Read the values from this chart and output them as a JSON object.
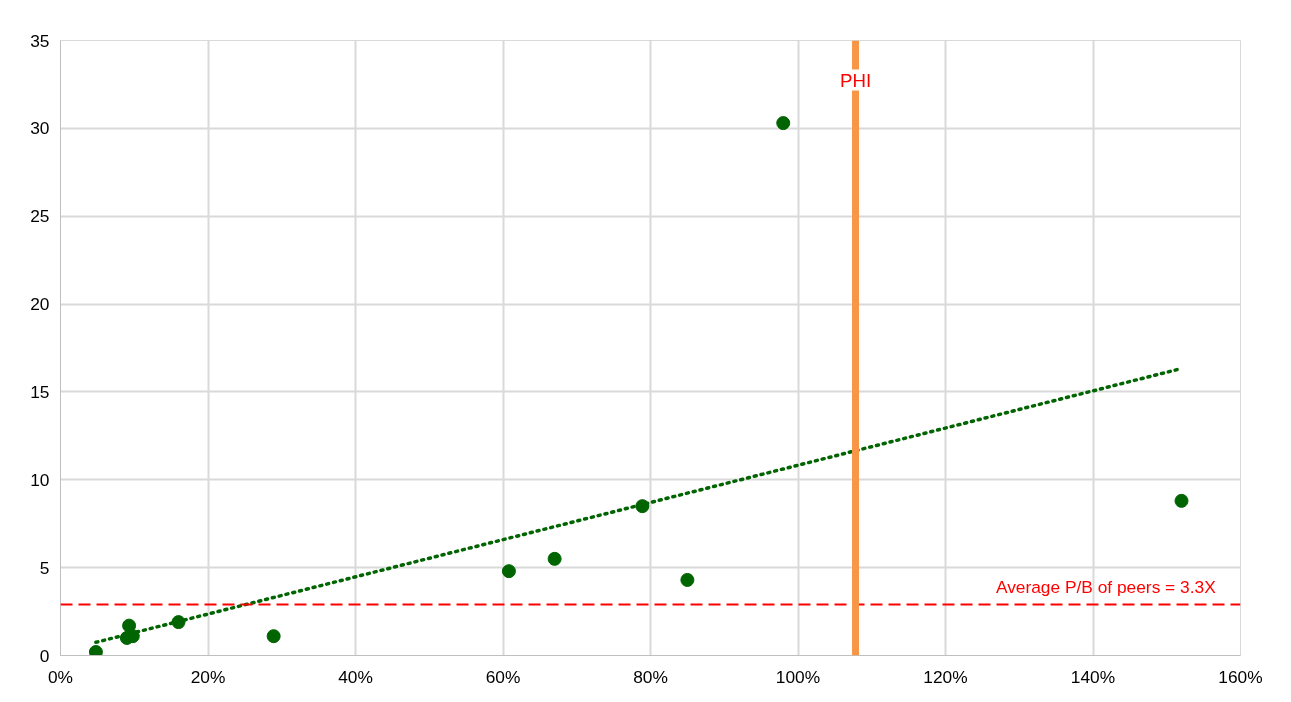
{
  "chart_data": {
    "type": "scatter",
    "series": [
      {
        "color": "#006400",
        "marker": "circle",
        "x": [
          4.8,
          9.3,
          9.0,
          9.8,
          16,
          28.9,
          60.8,
          67,
          78.9,
          85,
          98,
          152
        ],
        "values": [
          0.2,
          1.7,
          1.0,
          1.1,
          1.9,
          1.1,
          4.8,
          5.5,
          8.5,
          4.3,
          30.3,
          8.8
        ]
      },
      {
        "type": "line",
        "color": "#006400",
        "marker": "none",
        "line_style": "dotted",
        "x": [
          4.8,
          151.7
        ],
        "values": [
          0.75,
          16.3
        ]
      }
    ],
    "xlim": [
      0,
      160
    ],
    "ylim": [
      0,
      35
    ],
    "xticks": [
      {
        "value": 0,
        "label": "0%"
      },
      {
        "value": 20,
        "label": "20%"
      },
      {
        "value": 40,
        "label": "40%"
      },
      {
        "value": 60,
        "label": "60%"
      },
      {
        "value": 80,
        "label": "80%"
      },
      {
        "value": 100,
        "label": "100%"
      },
      {
        "value": 120,
        "label": "120%"
      },
      {
        "value": 140,
        "label": "140%"
      },
      {
        "value": 160,
        "label": "160%"
      }
    ],
    "yticks": [
      0,
      5,
      10,
      15,
      20,
      25,
      30,
      35
    ],
    "grid": true,
    "annotations": [
      "Average P/B of peers  = 3.3X"
    ],
    "ref_lines": [
      {
        "axis": "y",
        "value": 2.9,
        "color": "#ff0000",
        "line_style": "dashed"
      },
      {
        "axis": "x",
        "value": 107.8,
        "label": "PHI",
        "color": "#f79646",
        "line_style": "solid"
      }
    ]
  }
}
